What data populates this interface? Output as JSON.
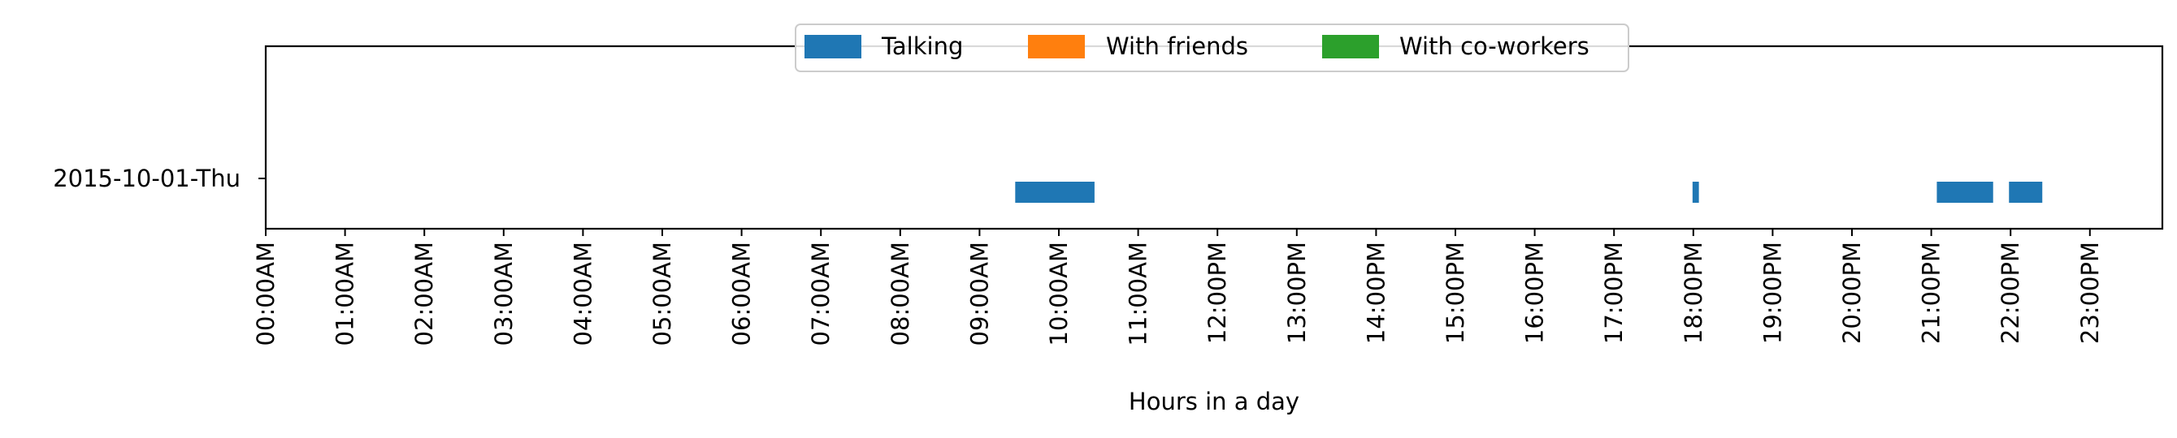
{
  "chart_data": {
    "type": "timeline",
    "xlabel": "Hours in a day",
    "xlim": [
      0,
      24
    ],
    "x_ticks": [
      {
        "hour": 0,
        "label": "00:00AM"
      },
      {
        "hour": 1,
        "label": "01:00AM"
      },
      {
        "hour": 2,
        "label": "02:00AM"
      },
      {
        "hour": 3,
        "label": "03:00AM"
      },
      {
        "hour": 4,
        "label": "04:00AM"
      },
      {
        "hour": 5,
        "label": "05:00AM"
      },
      {
        "hour": 6,
        "label": "06:00AM"
      },
      {
        "hour": 7,
        "label": "07:00AM"
      },
      {
        "hour": 8,
        "label": "08:00AM"
      },
      {
        "hour": 9,
        "label": "09:00AM"
      },
      {
        "hour": 10,
        "label": "10:00AM"
      },
      {
        "hour": 11,
        "label": "11:00AM"
      },
      {
        "hour": 12,
        "label": "12:00PM"
      },
      {
        "hour": 13,
        "label": "13:00PM"
      },
      {
        "hour": 14,
        "label": "14:00PM"
      },
      {
        "hour": 15,
        "label": "15:00PM"
      },
      {
        "hour": 16,
        "label": "16:00PM"
      },
      {
        "hour": 17,
        "label": "17:00PM"
      },
      {
        "hour": 18,
        "label": "18:00PM"
      },
      {
        "hour": 19,
        "label": "19:00PM"
      },
      {
        "hour": 20,
        "label": "20:00PM"
      },
      {
        "hour": 21,
        "label": "21:00PM"
      },
      {
        "hour": 22,
        "label": "22:00PM"
      },
      {
        "hour": 23,
        "label": "23:00PM"
      }
    ],
    "rows": [
      "2015-10-01-Thu"
    ],
    "series": [
      {
        "name": "Talking",
        "color": "#1f77b4",
        "intervals": [
          {
            "row": "2015-10-01-Thu",
            "start": 9.45,
            "end": 10.45
          },
          {
            "row": "2015-10-01-Thu",
            "start": 17.99,
            "end": 18.07
          },
          {
            "row": "2015-10-01-Thu",
            "start": 21.07,
            "end": 21.78
          },
          {
            "row": "2015-10-01-Thu",
            "start": 21.98,
            "end": 22.4
          }
        ]
      },
      {
        "name": "With friends",
        "color": "#ff7f0e",
        "intervals": []
      },
      {
        "name": "With co-workers",
        "color": "#2ca02c",
        "intervals": []
      }
    ],
    "legend_position": "top-center",
    "grid": false
  }
}
